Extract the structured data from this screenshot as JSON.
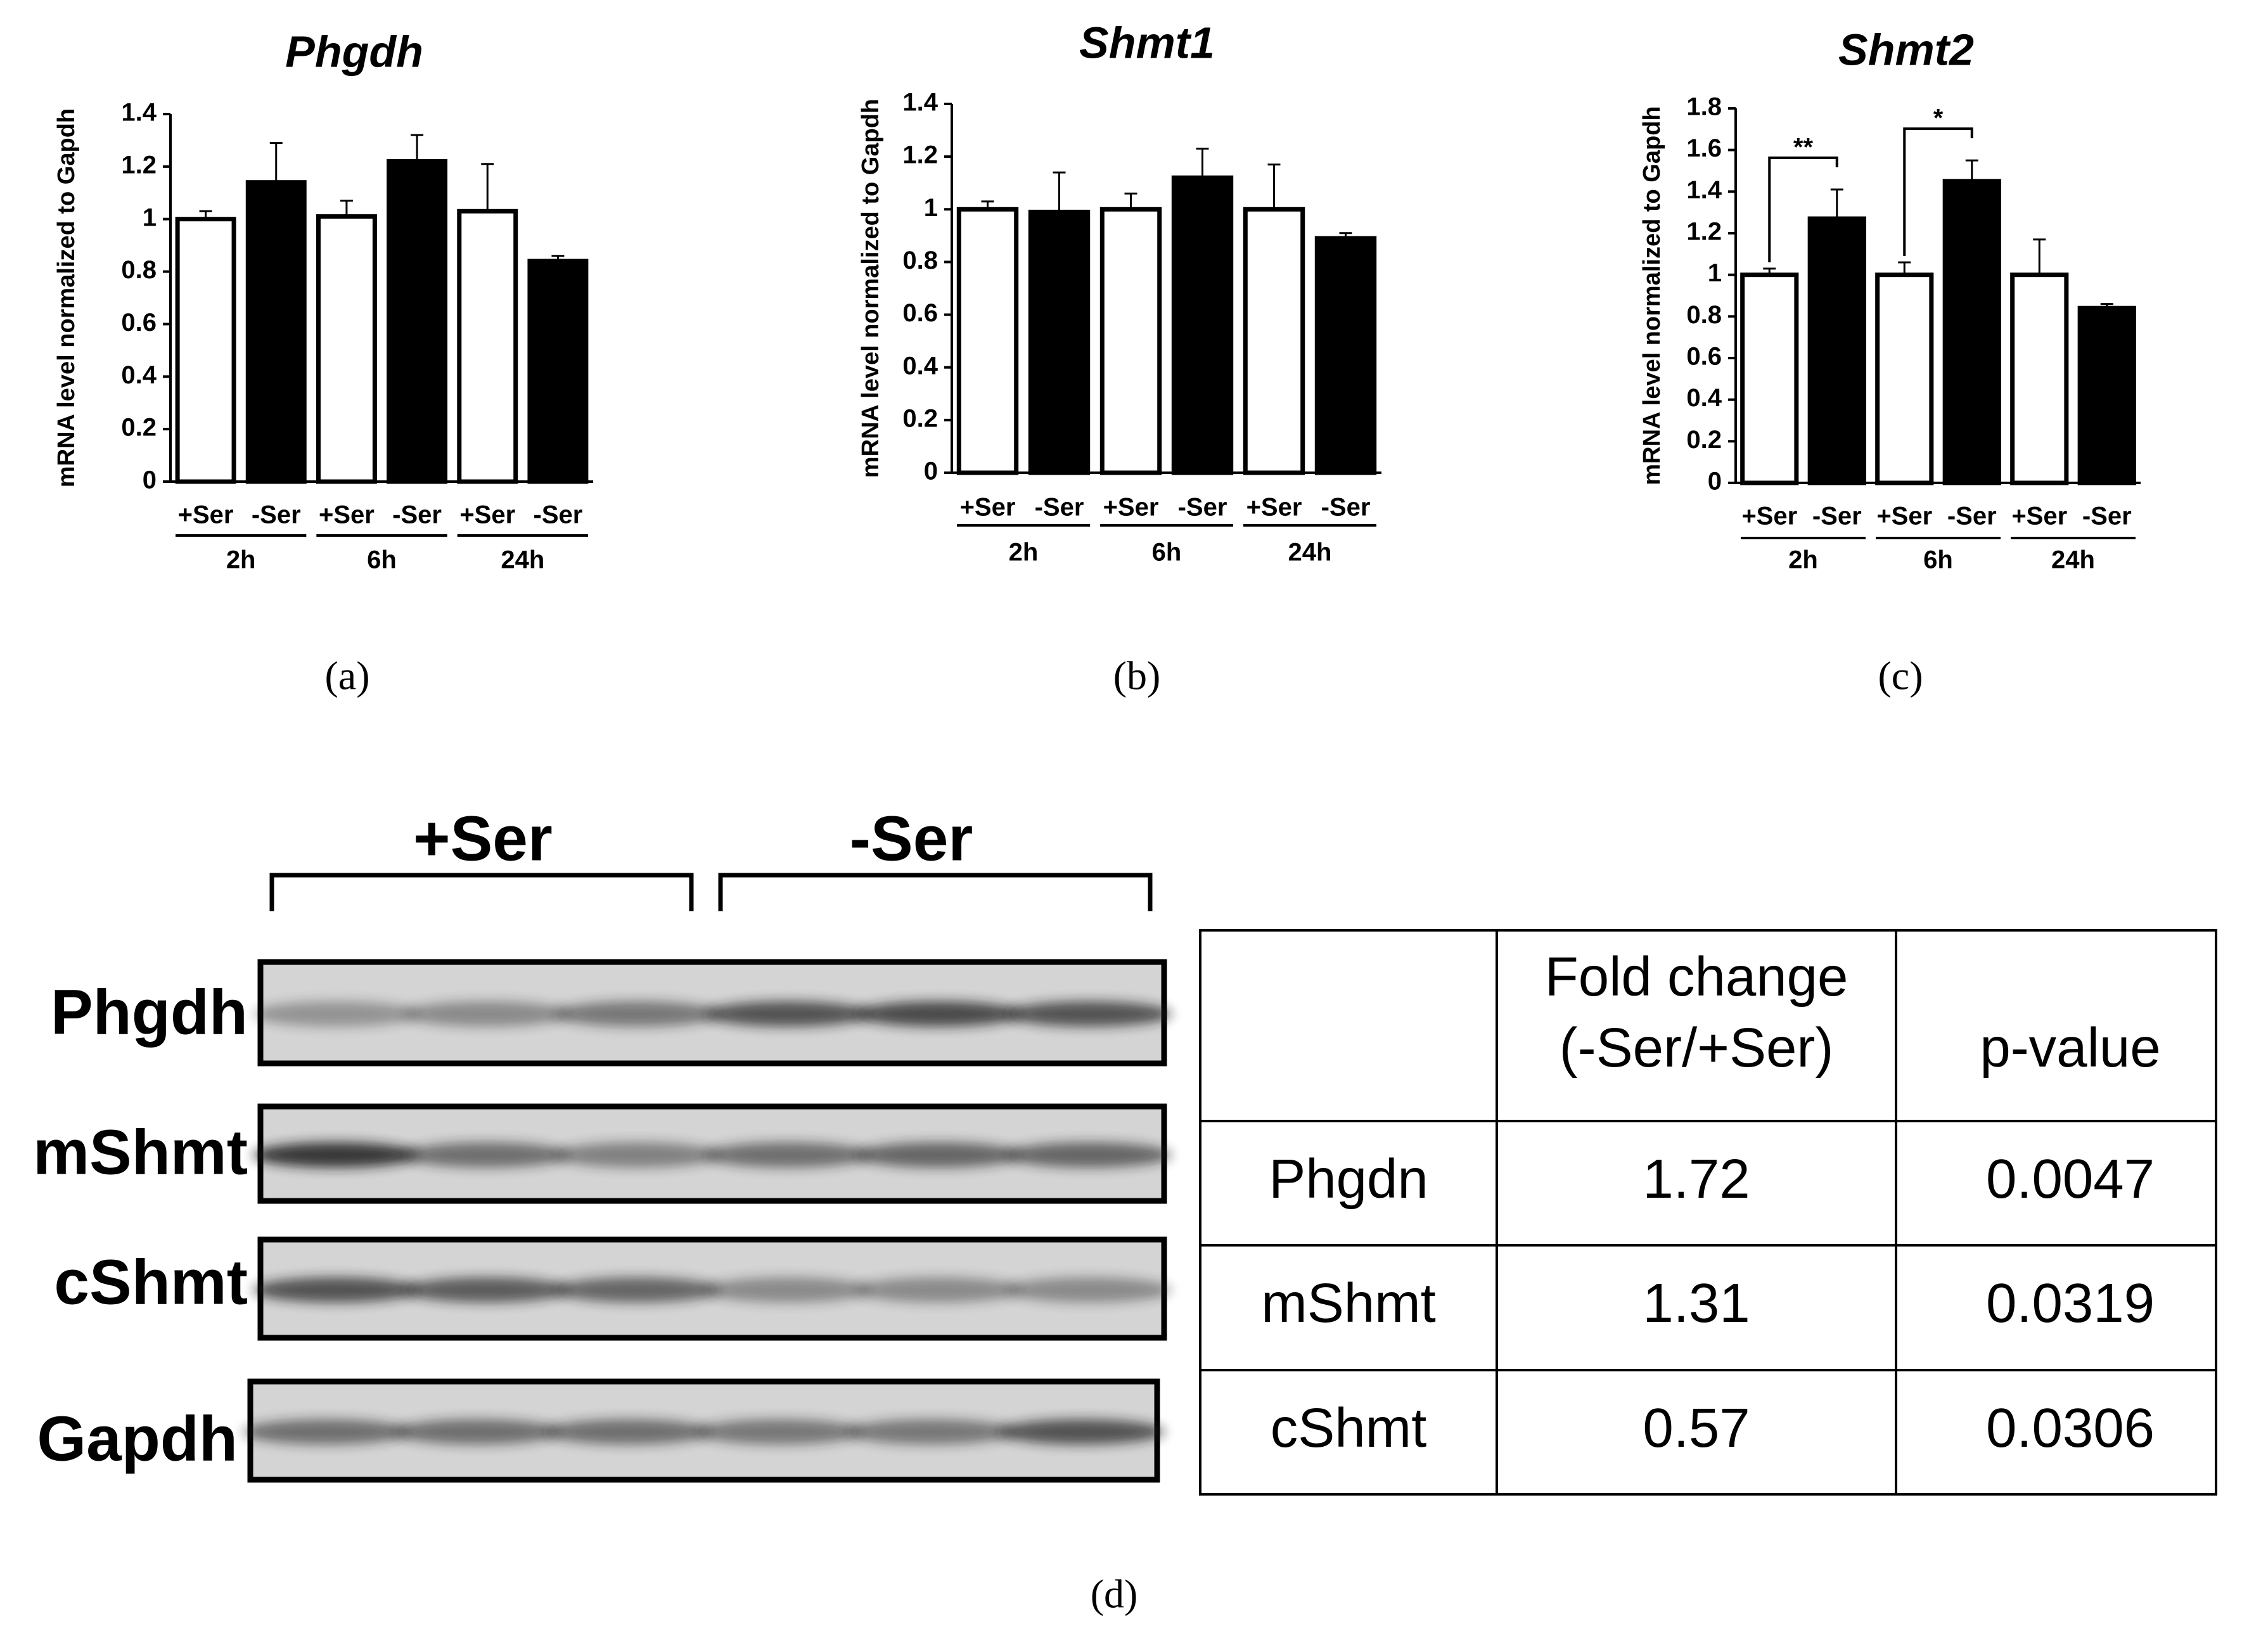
{
  "chart_data": [
    {
      "type": "bar",
      "title": "Phgdh",
      "ylabel": "mRNA level normalized  to Gapdh",
      "panel_label": "(a)",
      "categories": [
        "2h",
        "6h",
        "24h"
      ],
      "series": [
        {
          "name": "+Ser",
          "color": "#ffffff",
          "values": [
            1.0,
            1.01,
            1.03
          ],
          "errors": [
            0.03,
            0.06,
            0.18
          ]
        },
        {
          "name": "-Ser",
          "color": "#000000",
          "values": [
            1.14,
            1.22,
            0.84
          ],
          "errors": [
            0.15,
            0.1,
            0.02
          ]
        }
      ],
      "ylim": [
        0,
        1.4
      ],
      "yticks": [
        0,
        0.2,
        0.4,
        0.6,
        0.8,
        1,
        1.2,
        1.4
      ]
    },
    {
      "type": "bar",
      "title": "Shmt1",
      "ylabel": "mRNA level normalized  to Gapdh",
      "panel_label": "(b)",
      "categories": [
        "2h",
        "6h",
        "24h"
      ],
      "series": [
        {
          "name": "+Ser",
          "color": "#ffffff",
          "values": [
            1.0,
            1.0,
            1.0
          ],
          "errors": [
            0.03,
            0.06,
            0.17
          ]
        },
        {
          "name": "-Ser",
          "color": "#000000",
          "values": [
            0.99,
            1.12,
            0.89
          ],
          "errors": [
            0.15,
            0.11,
            0.02
          ]
        }
      ],
      "ylim": [
        0,
        1.4
      ],
      "yticks": [
        0,
        0.2,
        0.4,
        0.6,
        0.8,
        1,
        1.2,
        1.4
      ]
    },
    {
      "type": "bar",
      "title": "Shmt2",
      "ylabel": "mRNA level normalized  to Gapdh",
      "panel_label": "(c)",
      "categories": [
        "2h",
        "6h",
        "24h"
      ],
      "series": [
        {
          "name": "+Ser",
          "color": "#ffffff",
          "values": [
            1.0,
            1.0,
            1.0
          ],
          "errors": [
            0.03,
            0.06,
            0.17
          ]
        },
        {
          "name": "-Ser",
          "color": "#000000",
          "values": [
            1.27,
            1.45,
            0.84
          ],
          "errors": [
            0.14,
            0.1,
            0.02
          ]
        }
      ],
      "significance": [
        "**",
        "*",
        null
      ],
      "ylim": [
        0,
        1.8
      ],
      "yticks": [
        0,
        0.2,
        0.4,
        0.6,
        0.8,
        1,
        1.2,
        1.4,
        1.6,
        1.8
      ]
    }
  ],
  "blot": {
    "panel_label": "(d)",
    "groups": [
      "+Ser",
      "-Ser"
    ],
    "rows": [
      "Phgdh",
      "mShmt",
      "cShmt",
      "Gapdh"
    ]
  },
  "table": {
    "header": [
      [
        "Fold change",
        "(-Ser/+Ser)"
      ],
      "p-value"
    ],
    "rows": [
      [
        "Phgdn",
        "1.72",
        "0.0047"
      ],
      [
        "mShmt",
        "1.31",
        "0.0319"
      ],
      [
        "cShmt",
        "0.57",
        "0.0306"
      ]
    ]
  }
}
